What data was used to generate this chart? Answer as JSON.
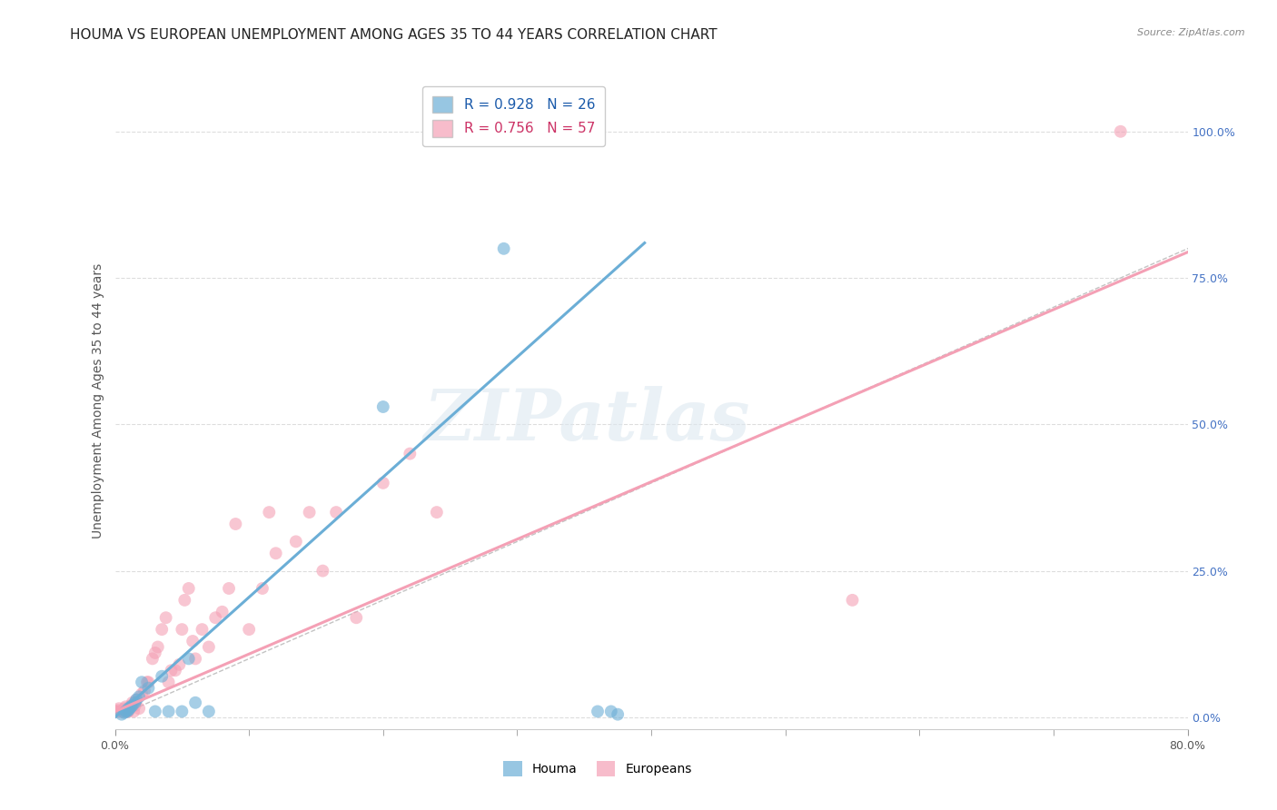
{
  "title": "HOUMA VS EUROPEAN UNEMPLOYMENT AMONG AGES 35 TO 44 YEARS CORRELATION CHART",
  "source": "Source: ZipAtlas.com",
  "ylabel": "Unemployment Among Ages 35 to 44 years",
  "xlim": [
    0,
    0.8
  ],
  "ylim": [
    -0.02,
    1.1
  ],
  "houma_color": "#6baed6",
  "european_color": "#f4a0b5",
  "houma_R": 0.928,
  "houma_N": 26,
  "european_R": 0.756,
  "european_N": 57,
  "houma_scatter_x": [
    0.005,
    0.007,
    0.008,
    0.009,
    0.01,
    0.01,
    0.011,
    0.012,
    0.013,
    0.015,
    0.016,
    0.018,
    0.02,
    0.025,
    0.03,
    0.035,
    0.04,
    0.05,
    0.055,
    0.06,
    0.07,
    0.2,
    0.29,
    0.36,
    0.37,
    0.375
  ],
  "houma_scatter_y": [
    0.005,
    0.008,
    0.01,
    0.01,
    0.012,
    0.015,
    0.015,
    0.018,
    0.02,
    0.025,
    0.03,
    0.035,
    0.06,
    0.05,
    0.01,
    0.07,
    0.01,
    0.01,
    0.1,
    0.025,
    0.01,
    0.53,
    0.8,
    0.01,
    0.01,
    0.005
  ],
  "european_scatter_x": [
    0.0,
    0.001,
    0.002,
    0.003,
    0.004,
    0.005,
    0.007,
    0.008,
    0.009,
    0.01,
    0.01,
    0.011,
    0.012,
    0.013,
    0.014,
    0.015,
    0.015,
    0.016,
    0.018,
    0.02,
    0.022,
    0.024,
    0.025,
    0.028,
    0.03,
    0.032,
    0.035,
    0.038,
    0.04,
    0.042,
    0.045,
    0.048,
    0.05,
    0.052,
    0.055,
    0.058,
    0.06,
    0.065,
    0.07,
    0.075,
    0.08,
    0.085,
    0.09,
    0.1,
    0.11,
    0.115,
    0.12,
    0.135,
    0.145,
    0.155,
    0.165,
    0.18,
    0.2,
    0.22,
    0.24,
    0.55,
    0.75
  ],
  "european_scatter_y": [
    0.01,
    0.01,
    0.012,
    0.015,
    0.01,
    0.01,
    0.015,
    0.018,
    0.01,
    0.01,
    0.015,
    0.015,
    0.02,
    0.025,
    0.01,
    0.02,
    0.025,
    0.03,
    0.015,
    0.04,
    0.045,
    0.06,
    0.06,
    0.1,
    0.11,
    0.12,
    0.15,
    0.17,
    0.06,
    0.08,
    0.08,
    0.09,
    0.15,
    0.2,
    0.22,
    0.13,
    0.1,
    0.15,
    0.12,
    0.17,
    0.18,
    0.22,
    0.33,
    0.15,
    0.22,
    0.35,
    0.28,
    0.3,
    0.35,
    0.25,
    0.35,
    0.17,
    0.4,
    0.45,
    0.35,
    0.2,
    1.0
  ],
  "houma_line": {
    "x0": 0.0,
    "x1": 0.395,
    "slope": 2.05,
    "intercept": 0.0
  },
  "european_line": {
    "x0": 0.0,
    "x1": 0.8,
    "slope": 0.98,
    "intercept": 0.01
  },
  "diag_color": "#aaaaaa",
  "background_color": "#ffffff",
  "grid_color": "#dddddd",
  "title_fontsize": 11,
  "label_fontsize": 10,
  "tick_fontsize": 9,
  "legend_fontsize": 11,
  "marker_size": 100,
  "watermark": "ZIPatlas"
}
